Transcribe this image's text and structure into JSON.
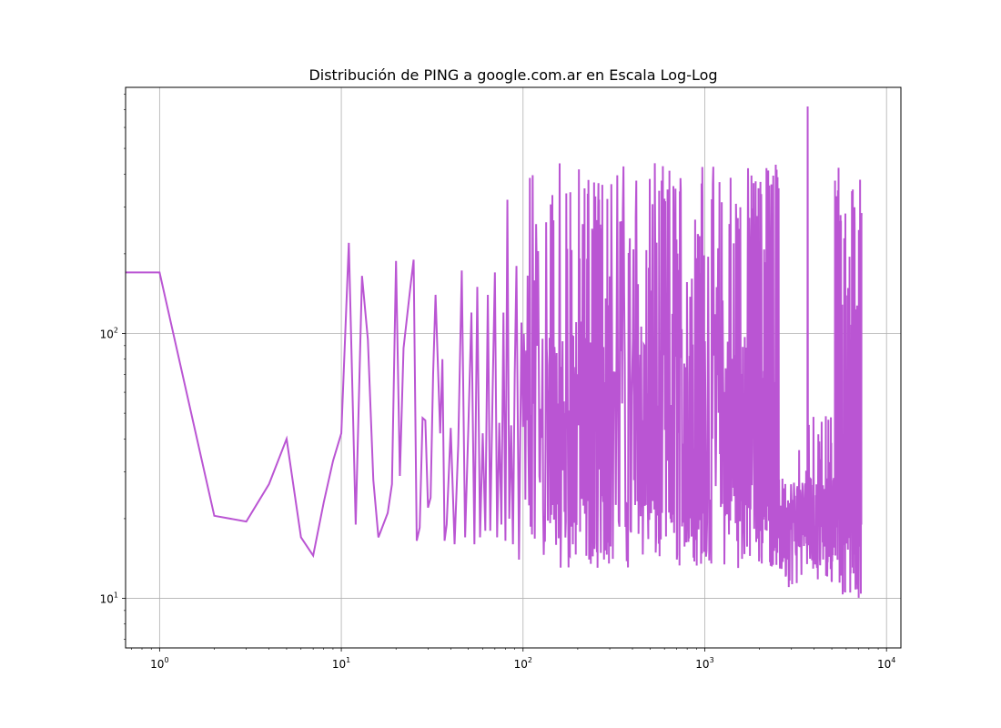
{
  "chart_data": {
    "type": "line",
    "title": "Distribución de PING a google.com.ar en Escala Log-Log",
    "xlabel": "",
    "ylabel": "",
    "x_scale": "log",
    "y_scale": "log",
    "xlim": [
      0.65,
      12000
    ],
    "ylim": [
      6.5,
      850
    ],
    "grid": true,
    "line_color": "#ba55d3",
    "x_ticks": [
      {
        "base": "10",
        "exp": "0",
        "value": 1
      },
      {
        "base": "10",
        "exp": "1",
        "value": 10
      },
      {
        "base": "10",
        "exp": "2",
        "value": 100
      },
      {
        "base": "10",
        "exp": "3",
        "value": 1000
      },
      {
        "base": "10",
        "exp": "4",
        "value": 10000
      }
    ],
    "y_ticks": [
      {
        "base": "10",
        "exp": "1",
        "value": 10
      },
      {
        "base": "10",
        "exp": "2",
        "value": 100
      }
    ],
    "series": [
      {
        "x": [
          0.65,
          1,
          2,
          3,
          4,
          5,
          6,
          7,
          8,
          9,
          10,
          11,
          12,
          13,
          14,
          15,
          16,
          18,
          19,
          20,
          21,
          22,
          24,
          25,
          26,
          27,
          28,
          29,
          30,
          31,
          32,
          33,
          35,
          36,
          37,
          38,
          40,
          42,
          44,
          46,
          48,
          50,
          52,
          54,
          56,
          58,
          60,
          62,
          64,
          66,
          68,
          70,
          72,
          74,
          76,
          78,
          80,
          82,
          84,
          86,
          88,
          90,
          92,
          95,
          98
        ],
        "y": [
          170,
          170,
          20.5,
          19.5,
          27,
          40,
          17,
          14.5,
          23,
          33,
          42,
          220,
          19,
          165,
          95,
          28,
          17,
          21,
          27,
          188,
          29,
          88,
          150,
          190,
          16.5,
          18.5,
          48,
          47,
          22,
          24,
          70,
          140,
          42,
          80,
          16.5,
          19,
          44,
          16,
          38,
          173,
          17,
          44,
          120,
          16,
          150,
          17,
          42,
          18,
          140,
          18,
          60,
          170,
          17,
          46,
          19,
          120,
          16.5,
          320,
          20,
          45,
          16,
          70,
          180,
          14,
          110
        ]
      }
    ]
  }
}
